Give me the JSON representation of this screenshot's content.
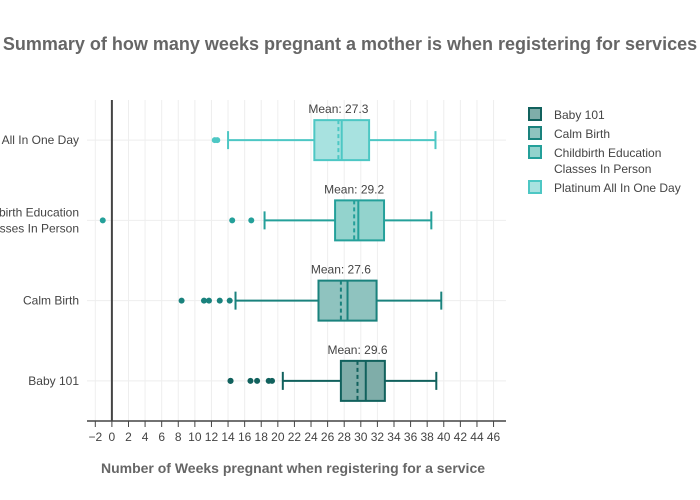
{
  "chart_data": {
    "type": "box",
    "title": "Summary of how many weeks pregnant a mother is when registering for services",
    "xlabel": "Number of Weeks pregnant when registering for a service",
    "ylabel": "",
    "xlim": [
      -3,
      47.5
    ],
    "x_ticks": [
      -2,
      0,
      2,
      4,
      6,
      8,
      10,
      12,
      14,
      16,
      18,
      20,
      22,
      24,
      26,
      28,
      30,
      32,
      34,
      36,
      38,
      40,
      42,
      44,
      46
    ],
    "x_tick_labels": [
      "−2",
      "0",
      "2",
      "4",
      "6",
      "8",
      "10",
      "12",
      "14",
      "16",
      "18",
      "20",
      "22",
      "24",
      "26",
      "28",
      "30",
      "32",
      "34",
      "36",
      "38",
      "40",
      "42",
      "44",
      "46"
    ],
    "grid": true,
    "zero_line": true,
    "legend_placement": "right-top",
    "series": [
      {
        "name": "Baby 101",
        "category_label": [
          "Baby 101"
        ],
        "color": "#11615d",
        "fill": "#7fada9",
        "lower_fence": 20.6,
        "q1": 27.6,
        "median": 30.6,
        "q3": 32.9,
        "upper_fence": 39.1,
        "mean": 29.6,
        "mean_label": "Mean: 29.6",
        "outliers": [
          14.3,
          14.3,
          16.7,
          17.5,
          18.9,
          19.3
        ]
      },
      {
        "name": "Calm Birth",
        "category_label": [
          "Calm Birth"
        ],
        "color": "#1a827d",
        "fill": "#8fc3bf",
        "lower_fence": 14.9,
        "q1": 24.9,
        "median": 28.4,
        "q3": 31.9,
        "upper_fence": 39.7,
        "mean": 27.6,
        "mean_label": "Mean: 27.6",
        "outliers": [
          8.4,
          11.1,
          11.7,
          13.0,
          14.2
        ]
      },
      {
        "name": "Childbirth Education Classes In Person",
        "name_lines": [
          "Childbirth Education",
          "Classes In Person"
        ],
        "category_label": [
          "ildbirth Education",
          "lasses In Person"
        ],
        "color": "#24a09a",
        "fill": "#93d3cd",
        "lower_fence": 18.4,
        "q1": 26.9,
        "median": 29.7,
        "q3": 32.8,
        "upper_fence": 38.5,
        "mean": 29.2,
        "mean_label": "Mean: 29.2",
        "outliers": [
          -1.1,
          14.5,
          16.8
        ]
      },
      {
        "name": "Platinum All In One Day",
        "category_label": [
          "All In One Day"
        ],
        "color": "#4dc7c4",
        "fill": "#a8e2e0",
        "lower_fence": 14.0,
        "q1": 24.4,
        "median": 27.7,
        "q3": 31.0,
        "upper_fence": 39.0,
        "mean": 27.3,
        "mean_label": "Mean: 27.3",
        "outliers": [
          12.4,
          12.7
        ]
      }
    ]
  }
}
